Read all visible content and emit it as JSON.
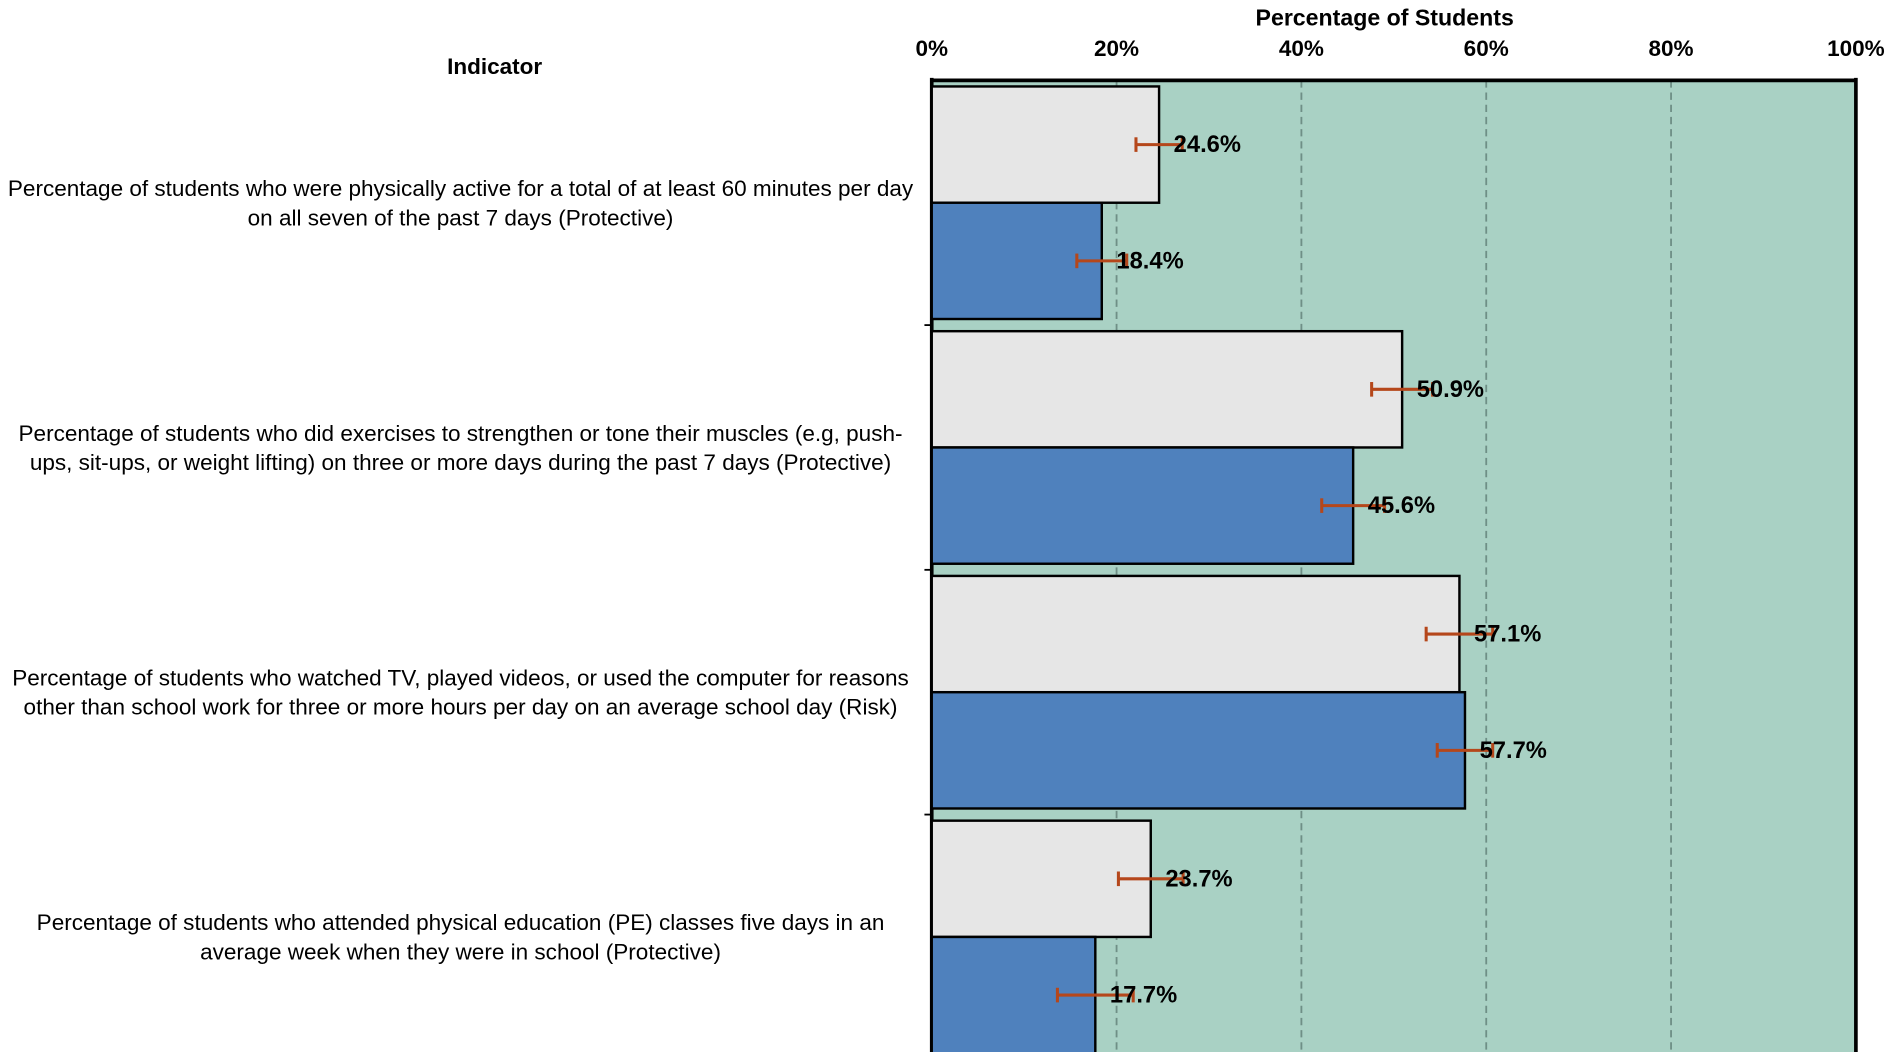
{
  "chart_data": {
    "type": "bar",
    "orientation": "horizontal",
    "title": "Percentage of Students",
    "category_axis_title": "Indicator",
    "categories": [
      "Percentage of students who were physically active for a total of at least 60 minutes per day on all seven of the past 7 days (Protective)",
      "Percentage of students who did exercises to strengthen or tone their muscles (e.g, push-ups, sit-ups, or weight lifting) on three or more days during the past 7 days (Protective)",
      "Percentage of students who watched TV, played videos, or used the computer for reasons other than school work for three or more hours per day on an average school day (Risk)",
      "Percentage of students who attended physical education (PE) classes five days in an average week when they were in school (Protective)"
    ],
    "series": [
      {
        "color": "#e6e6e6",
        "values": [
          24.6,
          50.9,
          57.1,
          23.7
        ],
        "value_labels": [
          "24.6%",
          "50.9%",
          "57.1%",
          "23.7%"
        ],
        "errors": [
          2.5,
          3.3,
          3.6,
          3.5
        ]
      },
      {
        "color": "#4f81bd",
        "values": [
          18.4,
          45.6,
          57.7,
          17.7
        ],
        "value_labels": [
          "18.4%",
          "45.6%",
          "57.7%",
          "17.7%"
        ],
        "errors": [
          2.7,
          3.4,
          3.0,
          4.1
        ]
      }
    ],
    "error_color": "#b5471b",
    "plot_background": "#a9d1c4",
    "xlim": [
      0,
      100
    ],
    "xticks": [
      {
        "value": 0,
        "label": "0%"
      },
      {
        "value": 20,
        "label": "20%"
      },
      {
        "value": 40,
        "label": "40%"
      },
      {
        "value": 60,
        "label": "60%"
      },
      {
        "value": 80,
        "label": "80%"
      },
      {
        "value": 100,
        "label": "100%"
      }
    ],
    "grid": true
  }
}
